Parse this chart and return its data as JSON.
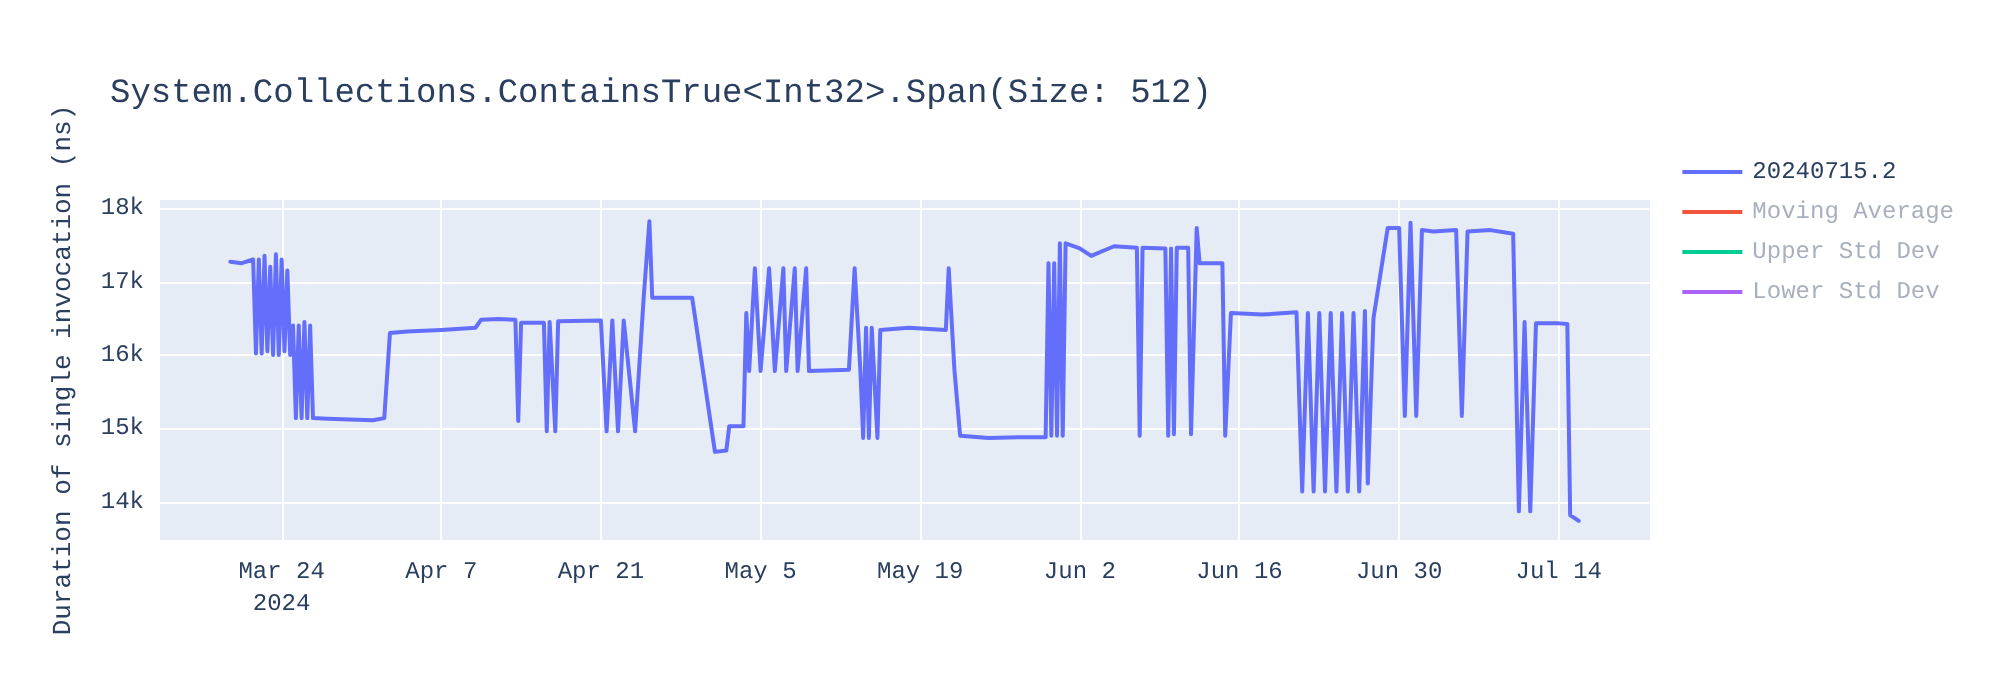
{
  "chart_data": {
    "type": "line",
    "title": "System.Collections.ContainsTrue<Int32>.Span(Size: 512)",
    "ylabel": "Duration of single invocation (ns)",
    "x": [
      "2024-03-19T12:00",
      "2024-03-20T12:00",
      "2024-03-21T12:00",
      "2024-03-21T18:00",
      "2024-03-22T00:00",
      "2024-03-22T06:00",
      "2024-03-22T12:00",
      "2024-03-22T18:00",
      "2024-03-23T00:00",
      "2024-03-23T06:00",
      "2024-03-23T12:00",
      "2024-03-23T18:00",
      "2024-03-24T00:00",
      "2024-03-24T06:00",
      "2024-03-24T12:00",
      "2024-03-24T18:00",
      "2024-03-25T00:00",
      "2024-03-25T06:00",
      "2024-03-25T12:00",
      "2024-03-25T18:00",
      "2024-03-26T00:00",
      "2024-03-26T06:00",
      "2024-03-26T12:00",
      "2024-03-26T18:00",
      "2024-03-28T00:00",
      "2024-03-30T00:00",
      "2024-04-01T00:00",
      "2024-04-02T00:00",
      "2024-04-02T12:00",
      "2024-04-04T00:00",
      "2024-04-07T00:00",
      "2024-04-10T00:00",
      "2024-04-10T12:00",
      "2024-04-12T00:00",
      "2024-04-13T12:00",
      "2024-04-13T18:00",
      "2024-04-14T00:00",
      "2024-04-16T00:00",
      "2024-04-16T06:00",
      "2024-04-16T12:00",
      "2024-04-17T00:00",
      "2024-04-17T06:00",
      "2024-04-21T00:00",
      "2024-04-21T12:00",
      "2024-04-22T00:00",
      "2024-04-22T12:00",
      "2024-04-23T00:00",
      "2024-04-24T00:00",
      "2024-04-24T18:00",
      "2024-04-25T06:00",
      "2024-04-25T12:00",
      "2024-04-29T00:00",
      "2024-05-01T00:00",
      "2024-05-02T00:00",
      "2024-05-02T06:00",
      "2024-05-03T12:00",
      "2024-05-03T18:00",
      "2024-05-04T00:00",
      "2024-05-04T12:00",
      "2024-05-05T00:00",
      "2024-05-05T18:00",
      "2024-05-06T06:00",
      "2024-05-07T00:00",
      "2024-05-07T06:00",
      "2024-05-08T00:00",
      "2024-05-08T06:00",
      "2024-05-09T00:00",
      "2024-05-09T06:00",
      "2024-05-12T18:00",
      "2024-05-13T06:00",
      "2024-05-13T18:00",
      "2024-05-14T00:00",
      "2024-05-14T06:00",
      "2024-05-14T12:00",
      "2024-05-14T18:00",
      "2024-05-15T06:00",
      "2024-05-15T12:00",
      "2024-05-18T00:00",
      "2024-05-21T06:00",
      "2024-05-21T12:00",
      "2024-05-22T00:00",
      "2024-05-22T12:00",
      "2024-05-25T00:00",
      "2024-05-28T00:00",
      "2024-05-30T00:00",
      "2024-05-30T06:00",
      "2024-05-30T12:00",
      "2024-05-30T18:00",
      "2024-05-31T00:00",
      "2024-05-31T06:00",
      "2024-05-31T12:00",
      "2024-05-31T18:00",
      "2024-06-02T00:00",
      "2024-06-03T00:00",
      "2024-06-05T00:00",
      "2024-06-06T00:00",
      "2024-06-07T00:00",
      "2024-06-07T06:00",
      "2024-06-07T12:00",
      "2024-06-09T12:00",
      "2024-06-09T18:00",
      "2024-06-10T00:00",
      "2024-06-10T06:00",
      "2024-06-10T12:00",
      "2024-06-11T12:00",
      "2024-06-11T18:00",
      "2024-06-12T06:00",
      "2024-06-12T12:00",
      "2024-06-14T12:00",
      "2024-06-14T18:00",
      "2024-06-15T06:00",
      "2024-06-18T00:00",
      "2024-06-21T00:00",
      "2024-06-21T12:00",
      "2024-06-22T00:00",
      "2024-06-22T12:00",
      "2024-06-23T00:00",
      "2024-06-23T12:00",
      "2024-06-24T00:00",
      "2024-06-24T12:00",
      "2024-06-25T00:00",
      "2024-06-25T12:00",
      "2024-06-26T00:00",
      "2024-06-26T12:00",
      "2024-06-27T00:00",
      "2024-06-27T06:00",
      "2024-06-27T18:00",
      "2024-06-29T00:00",
      "2024-06-30T00:00",
      "2024-06-30T12:00",
      "2024-07-01T00:00",
      "2024-07-01T12:00",
      "2024-07-02T00:00",
      "2024-07-03T00:00",
      "2024-07-05T00:00",
      "2024-07-05T12:00",
      "2024-07-06T00:00",
      "2024-07-08T00:00",
      "2024-07-10T00:00",
      "2024-07-10T12:00",
      "2024-07-11T00:00",
      "2024-07-11T12:00",
      "2024-07-12T00:00",
      "2024-07-14T00:00",
      "2024-07-14T18:00",
      "2024-07-15T00:00",
      "2024-07-15T18:00"
    ],
    "series": [
      {
        "name": "20240715.2",
        "color": "#636efa",
        "values": [
          17270,
          17250,
          17300,
          16020,
          17300,
          16020,
          17350,
          16050,
          17200,
          16000,
          17370,
          16000,
          17300,
          16050,
          17150,
          16000,
          16400,
          15140,
          16400,
          15140,
          16450,
          15140,
          16400,
          15140,
          15130,
          15120,
          15110,
          15140,
          16300,
          16320,
          16340,
          16370,
          16480,
          16490,
          16480,
          15100,
          16440,
          16440,
          14960,
          16450,
          14960,
          16460,
          16470,
          14960,
          16470,
          14960,
          16470,
          14960,
          16780,
          17820,
          16780,
          16780,
          14680,
          14700,
          15030,
          15030,
          16570,
          15780,
          17180,
          15780,
          17180,
          15780,
          17180,
          15780,
          17180,
          15780,
          17180,
          15780,
          15800,
          17180,
          15800,
          14870,
          16370,
          14870,
          16370,
          14870,
          16340,
          16370,
          16340,
          17180,
          15800,
          14900,
          14870,
          14880,
          14880,
          17250,
          14900,
          17250,
          14900,
          17520,
          14900,
          17520,
          17450,
          17350,
          17480,
          17470,
          17460,
          14900,
          17460,
          17450,
          14900,
          17450,
          14920,
          17460,
          17460,
          14920,
          17730,
          17250,
          17250,
          14900,
          16570,
          16550,
          16580,
          14140,
          16570,
          14140,
          16570,
          14140,
          16570,
          14140,
          16570,
          14140,
          16570,
          14140,
          16600,
          14250,
          16500,
          17730,
          17730,
          15170,
          17800,
          15170,
          17700,
          17680,
          17700,
          15170,
          17680,
          17700,
          17650,
          13870,
          16450,
          13870,
          16430,
          16430,
          16420,
          13820,
          13740
        ]
      },
      {
        "name": "Moving Average",
        "color": "#ef553b",
        "values": [
          null,
          null,
          null,
          null,
          null,
          null,
          null,
          null,
          null,
          null,
          null,
          null,
          null,
          null,
          null,
          null,
          null,
          null,
          null,
          null,
          null,
          null,
          null,
          null,
          null,
          null,
          null,
          null,
          null,
          null,
          null,
          null,
          null,
          null,
          null,
          null,
          null,
          null,
          null,
          null,
          null,
          null,
          null,
          null,
          null,
          null,
          null,
          null,
          null,
          null,
          null,
          null,
          null,
          null,
          null,
          null,
          null,
          null,
          null,
          null,
          null,
          null,
          null,
          null,
          null,
          null,
          null,
          null,
          null,
          null,
          null,
          null,
          null,
          null,
          null,
          null,
          null,
          null,
          null,
          null,
          null,
          null,
          null,
          null,
          null,
          null,
          null,
          null,
          null,
          null,
          null,
          null,
          null,
          null,
          null,
          null,
          null,
          null,
          null,
          null,
          null,
          null,
          null,
          null,
          null,
          null,
          null,
          null,
          null,
          null,
          null,
          null,
          null,
          null,
          null,
          null,
          null,
          null,
          null,
          null,
          null,
          null,
          null,
          null,
          null,
          null,
          null,
          null,
          null,
          null,
          null,
          null,
          null,
          null,
          null,
          null,
          null,
          null,
          null,
          null,
          null,
          null,
          null,
          null,
          null,
          null,
          null
        ]
      },
      {
        "name": "Upper Std Dev",
        "color": "#00cc96",
        "values": [
          null,
          null,
          null,
          null,
          null,
          null,
          null,
          null,
          null,
          null,
          null,
          null,
          null,
          null,
          null,
          null,
          null,
          null,
          null,
          null,
          null,
          null,
          null,
          null,
          null,
          null,
          null,
          null,
          null,
          null,
          null,
          null,
          null,
          null,
          null,
          null,
          null,
          null,
          null,
          null,
          null,
          null,
          null,
          null,
          null,
          null,
          null,
          null,
          null,
          null,
          null,
          null,
          null,
          null,
          null,
          null,
          null,
          null,
          null,
          null,
          null,
          null,
          null,
          null,
          null,
          null,
          null,
          null,
          null,
          null,
          null,
          null,
          null,
          null,
          null,
          null,
          null,
          null,
          null,
          null,
          null,
          null,
          null,
          null,
          null,
          null,
          null,
          null,
          null,
          null,
          null,
          null,
          null,
          null,
          null,
          null,
          null,
          null,
          null,
          null,
          null,
          null,
          null,
          null,
          null,
          null,
          null,
          null,
          null,
          null,
          null,
          null,
          null,
          null,
          null,
          null,
          null,
          null,
          null,
          null,
          null,
          null,
          null,
          null,
          null,
          null,
          null,
          null,
          null,
          null,
          null,
          null,
          null,
          null,
          null,
          null,
          null,
          null,
          null,
          null,
          null,
          null,
          null,
          null,
          null,
          null,
          null
        ]
      },
      {
        "name": "Lower Std Dev",
        "color": "#ab63fa",
        "values": [
          null,
          null,
          null,
          null,
          null,
          null,
          null,
          null,
          null,
          null,
          null,
          null,
          null,
          null,
          null,
          null,
          null,
          null,
          null,
          null,
          null,
          null,
          null,
          null,
          null,
          null,
          null,
          null,
          null,
          null,
          null,
          null,
          null,
          null,
          null,
          null,
          null,
          null,
          null,
          null,
          null,
          null,
          null,
          null,
          null,
          null,
          null,
          null,
          null,
          null,
          null,
          null,
          null,
          null,
          null,
          null,
          null,
          null,
          null,
          null,
          null,
          null,
          null,
          null,
          null,
          null,
          null,
          null,
          null,
          null,
          null,
          null,
          null,
          null,
          null,
          null,
          null,
          null,
          null,
          null,
          null,
          null,
          null,
          null,
          null,
          null,
          null,
          null,
          null,
          null,
          null,
          null,
          null,
          null,
          null,
          null,
          null,
          null,
          null,
          null,
          null,
          null,
          null,
          null,
          null,
          null,
          null,
          null,
          null,
          null,
          null,
          null,
          null,
          null,
          null,
          null,
          null,
          null,
          null,
          null,
          null,
          null,
          null,
          null,
          null,
          null,
          null,
          null,
          null,
          null,
          null,
          null,
          null,
          null,
          null,
          null,
          null,
          null,
          null,
          null,
          null,
          null,
          null,
          null,
          null,
          null,
          null
        ]
      }
    ],
    "xlim": [
      "2024-03-13T08:00",
      "2024-07-22T00:00"
    ],
    "xticks": [
      {
        "value": "2024-03-24",
        "label": "Mar 24\n2024"
      },
      {
        "value": "2024-04-07",
        "label": "Apr 7"
      },
      {
        "value": "2024-04-21",
        "label": "Apr 21"
      },
      {
        "value": "2024-05-05",
        "label": "May 5"
      },
      {
        "value": "2024-05-19",
        "label": "May 19"
      },
      {
        "value": "2024-06-02",
        "label": "Jun 2"
      },
      {
        "value": "2024-06-16",
        "label": "Jun 16"
      },
      {
        "value": "2024-06-30",
        "label": "Jun 30"
      },
      {
        "value": "2024-07-14",
        "label": "Jul 14"
      }
    ],
    "ylim": [
      13480,
      18110
    ],
    "yticks": [
      {
        "value": 14000,
        "label": "14k"
      },
      {
        "value": 15000,
        "label": "15k"
      },
      {
        "value": 16000,
        "label": "16k"
      },
      {
        "value": 17000,
        "label": "17k"
      },
      {
        "value": 18000,
        "label": "18k"
      }
    ],
    "grid": true,
    "legend": "top right",
    "marker": "none",
    "line_style": "solid"
  }
}
